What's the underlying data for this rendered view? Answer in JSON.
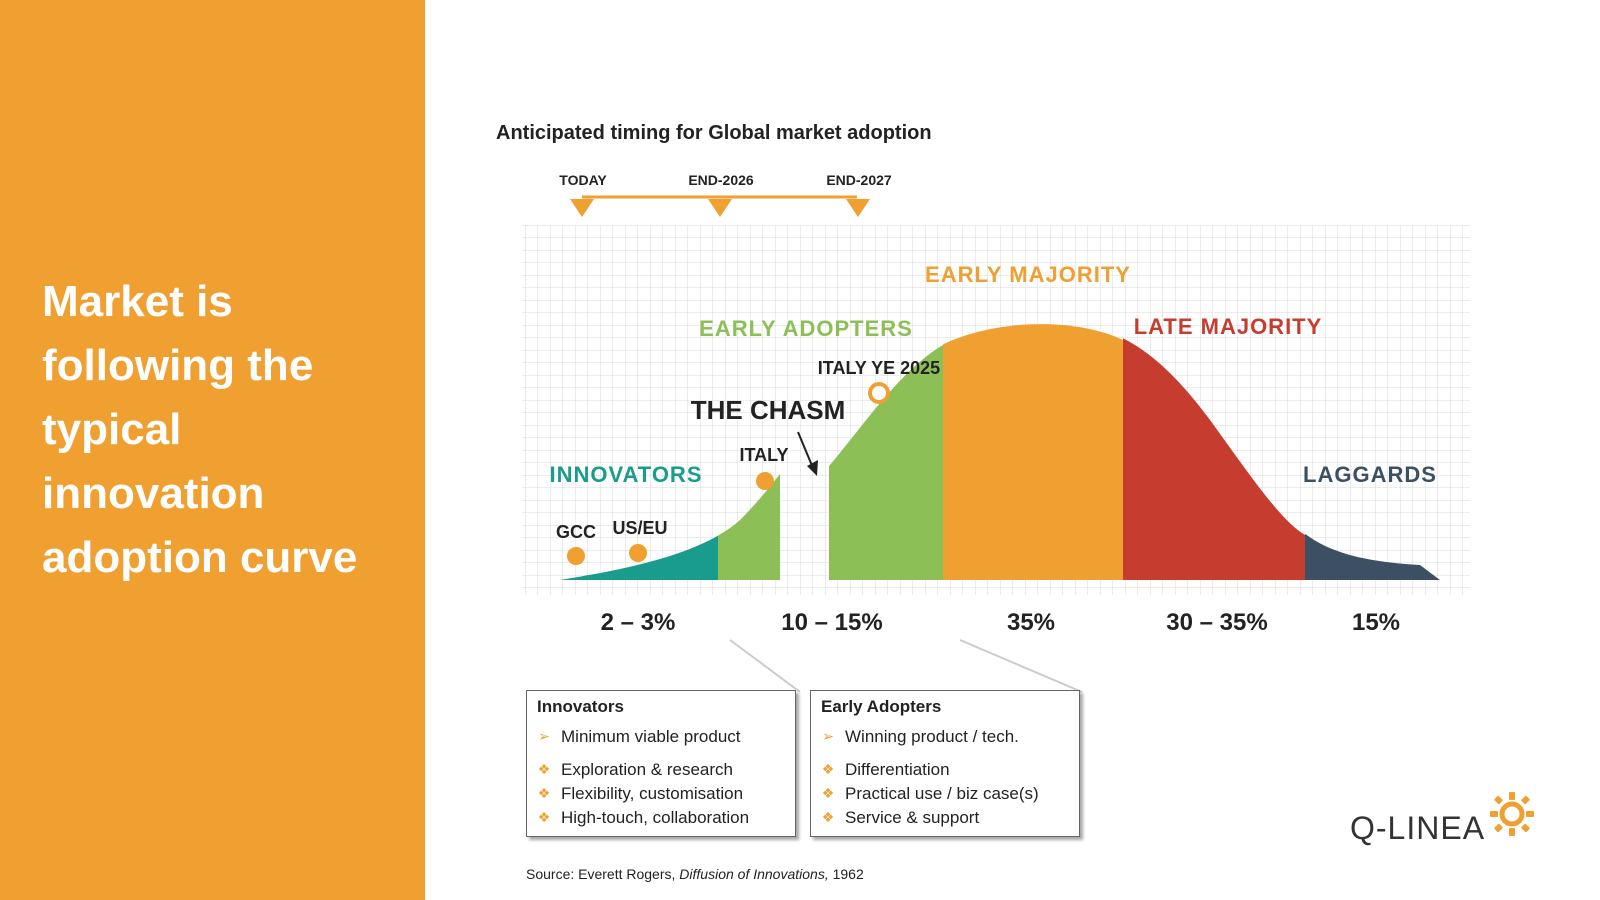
{
  "headline": "Market is following the typical innovation adoption curve",
  "diagram": {
    "title": "Anticipated timing for Global market adoption",
    "timeline": [
      "TODAY",
      "END-2026",
      "END-2027"
    ],
    "segments": {
      "innovators": "INNOVATORS",
      "early_adopters": "EARLY ADOPTERS",
      "chasm": "THE CHASM",
      "early_majority": "EARLY MAJORITY",
      "late_majority": "LATE MAJORITY",
      "laggards": "LAGGARDS"
    },
    "markers": [
      "GCC",
      "US/EU",
      "ITALY",
      "ITALY YE 2025"
    ],
    "percentages": [
      "2 – 3%",
      "10 – 15%",
      "35%",
      "30 – 35%",
      "15%"
    ],
    "colors": {
      "accent": "#f09f31",
      "innovators": "#1a9c8c",
      "early_adopters": "#8cbf55",
      "early_majority": "#f09f31",
      "late_majority": "#c63d2f",
      "laggards": "#3d4f63"
    }
  },
  "innovators_box": {
    "title": "Innovators",
    "items": [
      "Minimum viable product",
      "Exploration & research",
      "Flexibility, customisation",
      "High-touch, collaboration"
    ]
  },
  "early_adopters_box": {
    "title": "Early Adopters",
    "items": [
      "Winning product / tech.",
      "Differentiation",
      "Practical use / biz case(s)",
      "Service & support"
    ]
  },
  "source": {
    "prefix": "Source: Everett Rogers, ",
    "work": "Diffusion of Innovations,",
    "year": " 1962"
  },
  "logo": {
    "text": "Q-LINEA",
    "icon": "sun-ring-icon"
  }
}
